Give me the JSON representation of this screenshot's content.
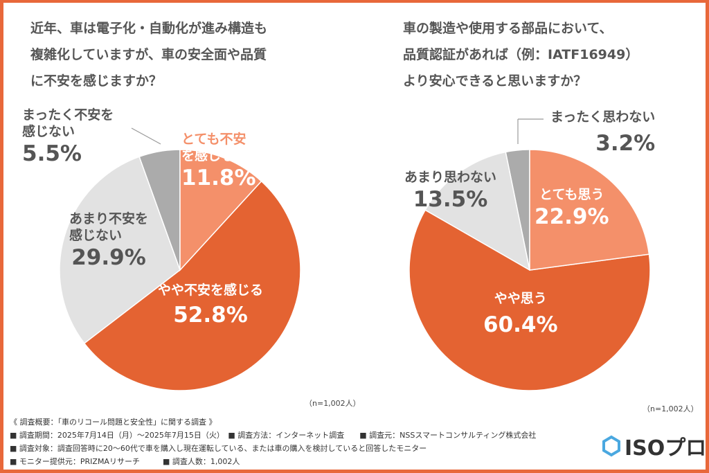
{
  "chart_data": [
    {
      "type": "pie",
      "title": "近年、車は電子化・自動化が進み構造も\n複雑化していますが、車の安全面や品質\nに不安を感じますか？",
      "title_lines": [
        "近年、車は電子化・自動化が進み構造も",
        "複雑化していますが、車の安全面や品質",
        "に不安を感じますか？"
      ],
      "slices": [
        {
          "label": "とても不安を感じる",
          "label_lines": [
            "とても不安",
            "を感じる"
          ],
          "value": 11.8,
          "display": "11.8%",
          "color": "#f4906a"
        },
        {
          "label": "やや不安を感じる",
          "label_lines": [
            "やや不安を感じる"
          ],
          "value": 52.8,
          "display": "52.8%",
          "color": "#e46332"
        },
        {
          "label": "あまり不安を感じない",
          "label_lines": [
            "あまり不安を",
            "感じない"
          ],
          "value": 29.9,
          "display": "29.9%",
          "color": "#e2e2e2"
        },
        {
          "label": "まったく不安を感じない",
          "label_lines": [
            "まったく不安を",
            "感じない"
          ],
          "value": 5.5,
          "display": "5.5%",
          "color": "#ababab"
        }
      ],
      "note": "（n=1,002人）"
    },
    {
      "type": "pie",
      "title_lines": [
        "車の製造や使用する部品において、",
        "品質認証があれば（例：IATF16949）",
        "より安心できると思いますか？"
      ],
      "slices": [
        {
          "label": "とても思う",
          "value": 22.9,
          "display": "22.9%",
          "color": "#f4906a"
        },
        {
          "label": "やや思う",
          "value": 60.4,
          "display": "60.4%",
          "color": "#e46332"
        },
        {
          "label": "あまり思わない",
          "value": 13.5,
          "display": "13.5%",
          "color": "#e2e2e2"
        },
        {
          "label": "まったく思わない",
          "value": 3.2,
          "display": "3.2%",
          "color": "#ababab"
        }
      ],
      "note": "（n=1,002人）"
    }
  ],
  "footer": {
    "lines": [
      "《 調査概要：「車のリコール問題と安全性」に関する調査 》",
      "■ 調査期間：2025年7月14日（月）～2025年7月15日（火）　■ 調査方法：インターネット調査　　■ 調査元：NSSスマートコンサルティング株式会社",
      "■ 調査対象：調査回答時に20～60代で車を購入し現在運転している、または車の購入を検討していると回答したモニター",
      "■ モニター提供元：PRIZMAリサーチ　　　■ 調査人数：1,002人"
    ],
    "logo": "ISOプロ"
  },
  "border_color": "#e8683a"
}
